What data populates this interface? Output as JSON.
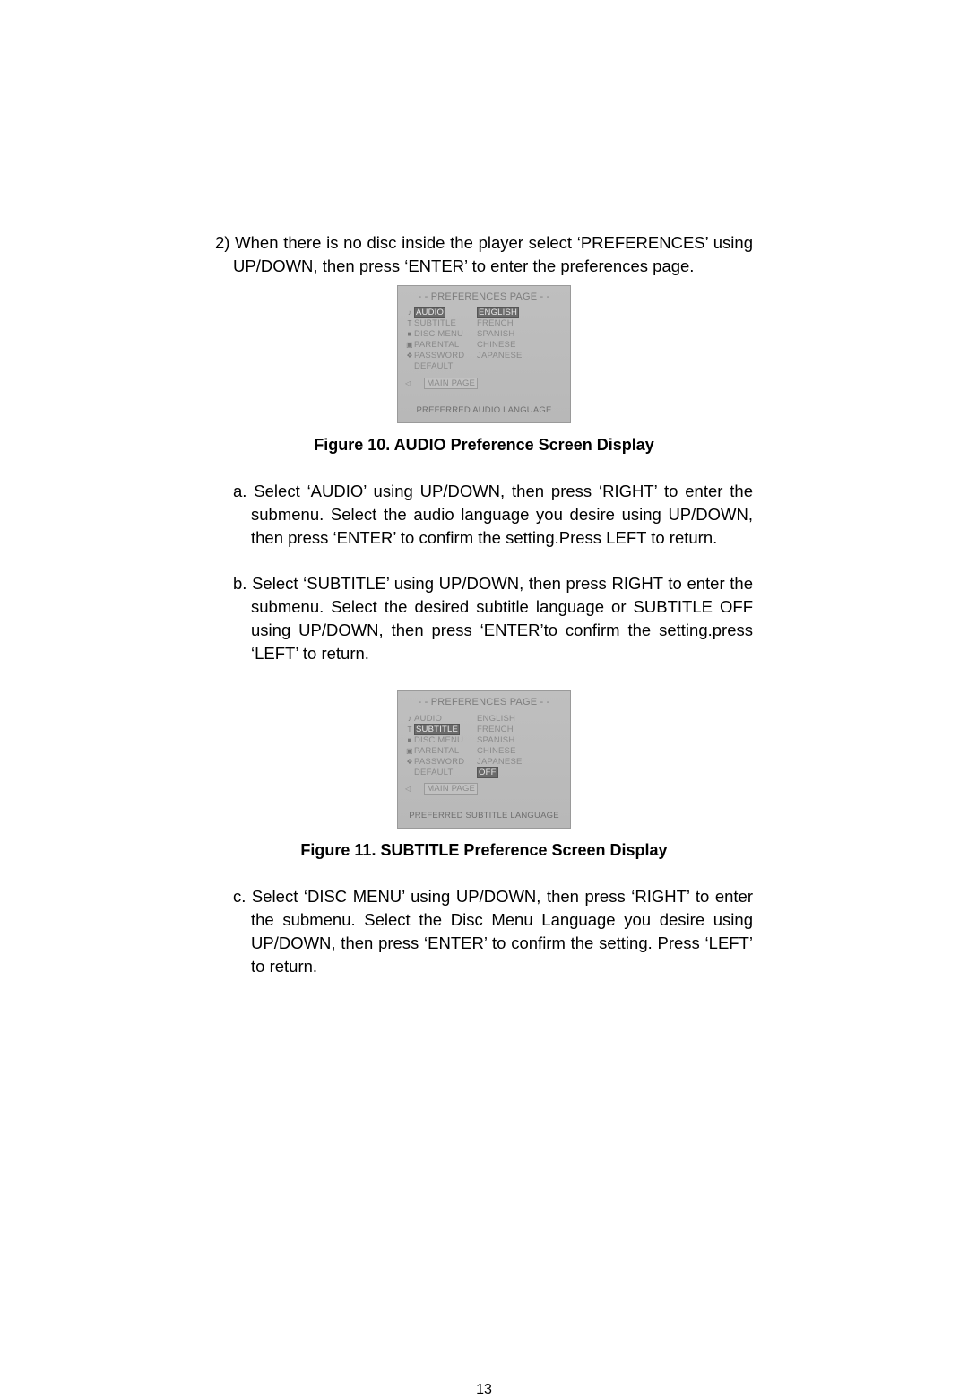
{
  "page_number": "13",
  "step2": "2)  When there is no disc inside the player select ‘PREFERENCES’ using UP/DOWN,  then press ‘ENTER’ to enter the preferences page.",
  "fig10": {
    "caption": "Figure 10. AUDIO Preference Screen Display",
    "title": "- -  PREFERENCES PAGE  - -",
    "left_items": [
      "AUDIO",
      "SUBTITLE",
      "DISC MENU",
      "PARENTAL",
      "PASSWORD",
      "DEFAULT"
    ],
    "right_items": [
      "ENGLISH",
      "FRENCH",
      "SPANISH",
      "CHINESE",
      "JAPANESE"
    ],
    "selected_left_index": 0,
    "selected_right_index": 0,
    "main_page": "MAIN PAGE",
    "bottom": "PREFERRED  AUDIO LANGUAGE",
    "icons": [
      "♪",
      "T",
      "■",
      "▣",
      "❖",
      ""
    ],
    "colors": {
      "bg": "#bfbfbf",
      "text_dim": "#8a8a8a",
      "hl_bg": "#6b6b6b",
      "hl_text": "#e8e8e8"
    }
  },
  "step_a": "a.  Select  ‘AUDIO’ using UP/DOWN, then press ‘RIGHT’ to enter the submenu. Select the audio language you desire using UP/DOWN, then press ‘ENTER’ to confirm the setting.Press LEFT to return.",
  "step_b": "b.  Select ‘SUBTITLE’ using UP/DOWN, then press RIGHT to enter the submenu. Select the desired  subtitle language or SUBTITLE OFF using UP/DOWN, then press ‘ENTER’to confirm the setting.press ‘LEFT’  to return.",
  "fig11": {
    "caption": "Figure 11. SUBTITLE Preference Screen Display",
    "title": "- -  PREFERENCES PAGE  - -",
    "left_items": [
      "AUDIO",
      "SUBTITLE",
      "DISC MENU",
      "PARENTAL",
      "PASSWORD",
      "DEFAULT"
    ],
    "right_items": [
      "ENGLISH",
      "FRENCH",
      "SPANISH",
      "CHINESE",
      "JAPANESE",
      "OFF"
    ],
    "selected_left_index": 1,
    "selected_right_index": 5,
    "main_page": "MAIN PAGE",
    "bottom": "PREFERRED SUBTITLE LANGUAGE",
    "icons": [
      "♪",
      "T",
      "■",
      "▣",
      "❖",
      ""
    ],
    "colors": {
      "bg": "#bfbfbf",
      "text_dim": "#8a8a8a",
      "hl_bg": "#6b6b6b",
      "hl_text": "#e8e8e8"
    }
  },
  "step_c": "c.  Select ‘DISC MENU’ using UP/DOWN, then press ‘RIGHT’ to enter the submenu. Select the Disc Menu Language you desire using UP/DOWN, then press ‘ENTER’ to confirm the setting. Press ‘LEFT’ to return."
}
